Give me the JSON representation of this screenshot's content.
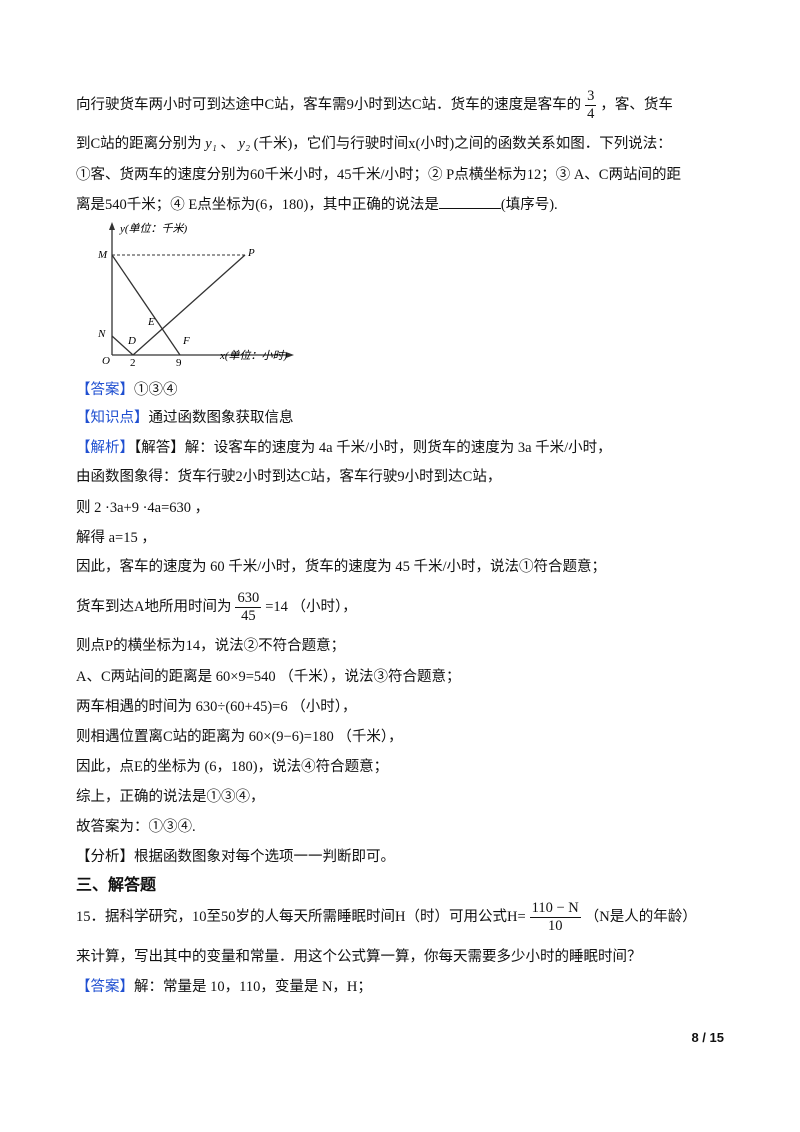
{
  "problem14": {
    "line1a": "向行驶货车两小时可到达途中C站，客车需9小时到达C站．货车的速度是客车的",
    "frac_num": "3",
    "frac_den": "4",
    "line1b": "，客、货车",
    "line2a": "到C站的距离分别为",
    "y1": "y₁",
    "sep": "、",
    "y2": "y₂",
    "line2b": "(千米)，它们与行驶时间x(小时)之间的函数关系如图．下列说法：",
    "line3": "①客、货两车的速度分别为60千米小时，45千米/小时；② P点横坐标为12；③ A、C两站间的距",
    "line4a": "离是540千米；④ E点坐标为(6，180)，其中正确的说法是",
    "line4b": "(填序号)."
  },
  "graph": {
    "y_label": "y(单位：千米)",
    "x_label": "x(单位：小时)",
    "points": [
      "M",
      "N",
      "O",
      "D",
      "E",
      "F",
      "P"
    ],
    "tick_2": "2",
    "tick_9": "9"
  },
  "answer": {
    "label": "【答案】",
    "text": "①③④"
  },
  "knowledge": {
    "label": "【知识点】",
    "text": "通过函数图象获取信息"
  },
  "analysis": {
    "label": "【解析】",
    "lines": [
      "【解答】解：设客车的速度为 4a 千米/小时，则货车的速度为 3a 千米/小时，",
      "由函数图象得：货车行驶2小时到达C站，客车行驶9小时到达C站，",
      "则 2 ·3a+9 ·4a=630 ，",
      "解得 a=15 ，",
      "因此，客车的速度为 60 千米/小时，货车的速度为 45 千米/小时，说法①符合题意；"
    ],
    "time_a": "货车到达A地所用时间为",
    "time_num": "630",
    "time_den": "45",
    "time_b": "=14 （小时），",
    "lines2": [
      "则点P的横坐标为14，说法②不符合题意；",
      "A、C两站间的距离是 60×9=540 （千米），说法③符合题意；",
      "两车相遇的时间为 630÷(60+45)=6 （小时），",
      "则相遇位置离C站的距离为 60×(9−6)=180 （千米），",
      "因此，点E的坐标为 (6，180)，说法④符合题意；",
      "综上，正确的说法是①③④，",
      "故答案为：①③④."
    ]
  },
  "comment": {
    "label": "【分析】",
    "text": "根据函数图象对每个选项一一判断即可。"
  },
  "section": "三、解答题",
  "problem15": {
    "a": "15．据科学研究，10至50岁的人每天所需睡眠时间H（时）可用公式H=",
    "num": "110 − N",
    "den": "10",
    "b": "（N是人的年龄）",
    "line2": "来计算，写出其中的变量和常量．用这个公式算一算，你每天需要多少小时的睡眠时间？",
    "answer_label": "【答案】",
    "answer_text": "解：常量是 10，110，变量是 N，H；"
  },
  "page_number": "8 / 15",
  "colors": {
    "label_blue": "#1f4fd1"
  }
}
